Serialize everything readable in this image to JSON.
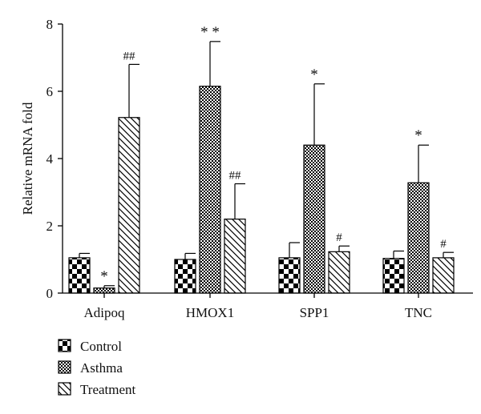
{
  "chart_data": {
    "type": "bar",
    "ylabel": "Relative mRNA fold",
    "ylim": [
      0,
      8
    ],
    "yticks": [
      0,
      2,
      4,
      6,
      8
    ],
    "categories": [
      "Adipoq",
      "HMOX1",
      "SPP1",
      "TNC"
    ],
    "legend_position": "bottom-left",
    "series": [
      {
        "name": "Control",
        "pattern": "checker-large",
        "values": [
          1.05,
          1.0,
          1.05,
          1.03
        ],
        "errors": [
          0.13,
          0.18,
          0.45,
          0.22
        ],
        "annotations": [
          "",
          "",
          "",
          ""
        ]
      },
      {
        "name": "Asthma",
        "pattern": "checker-fine",
        "values": [
          0.15,
          6.15,
          4.4,
          3.28
        ],
        "errors": [
          0.07,
          1.33,
          1.82,
          1.12
        ],
        "annotations": [
          "*",
          "* *",
          "*",
          "*"
        ]
      },
      {
        "name": "Treatment",
        "pattern": "diagonal",
        "values": [
          5.22,
          2.2,
          1.23,
          1.05
        ],
        "errors": [
          1.58,
          1.05,
          0.17,
          0.16
        ],
        "annotations": [
          "##",
          "##",
          "#",
          "#"
        ]
      }
    ]
  }
}
